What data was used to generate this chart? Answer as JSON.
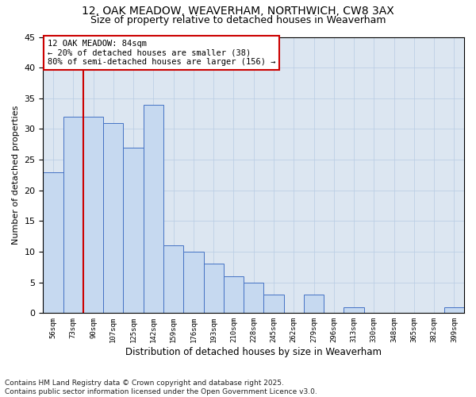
{
  "title_line1": "12, OAK MEADOW, WEAVERHAM, NORTHWICH, CW8 3AX",
  "title_line2": "Size of property relative to detached houses in Weaverham",
  "xlabel": "Distribution of detached houses by size in Weaverham",
  "ylabel": "Number of detached properties",
  "categories": [
    "56sqm",
    "73sqm",
    "90sqm",
    "107sqm",
    "125sqm",
    "142sqm",
    "159sqm",
    "176sqm",
    "193sqm",
    "210sqm",
    "228sqm",
    "245sqm",
    "262sqm",
    "279sqm",
    "296sqm",
    "313sqm",
    "330sqm",
    "348sqm",
    "365sqm",
    "382sqm",
    "399sqm"
  ],
  "values": [
    23,
    32,
    32,
    31,
    27,
    34,
    11,
    10,
    8,
    6,
    5,
    3,
    0,
    3,
    0,
    1,
    0,
    0,
    0,
    0,
    1
  ],
  "bar_color": "#c6d9f0",
  "bar_edge_color": "#4472c4",
  "grid_color": "#b8cce4",
  "background_color": "#dce6f1",
  "vline_x": 1.5,
  "vline_color": "#cc0000",
  "annotation_text": "12 OAK MEADOW: 84sqm\n← 20% of detached houses are smaller (38)\n80% of semi-detached houses are larger (156) →",
  "annotation_box_color": "#cc0000",
  "ylim": [
    0,
    45
  ],
  "yticks": [
    0,
    5,
    10,
    15,
    20,
    25,
    30,
    35,
    40,
    45
  ],
  "footnote": "Contains HM Land Registry data © Crown copyright and database right 2025.\nContains public sector information licensed under the Open Government Licence v3.0.",
  "title_fontsize": 10,
  "subtitle_fontsize": 9,
  "annotation_fontsize": 7.5,
  "footnote_fontsize": 6.5,
  "ylabel_fontsize": 8,
  "xlabel_fontsize": 8.5
}
